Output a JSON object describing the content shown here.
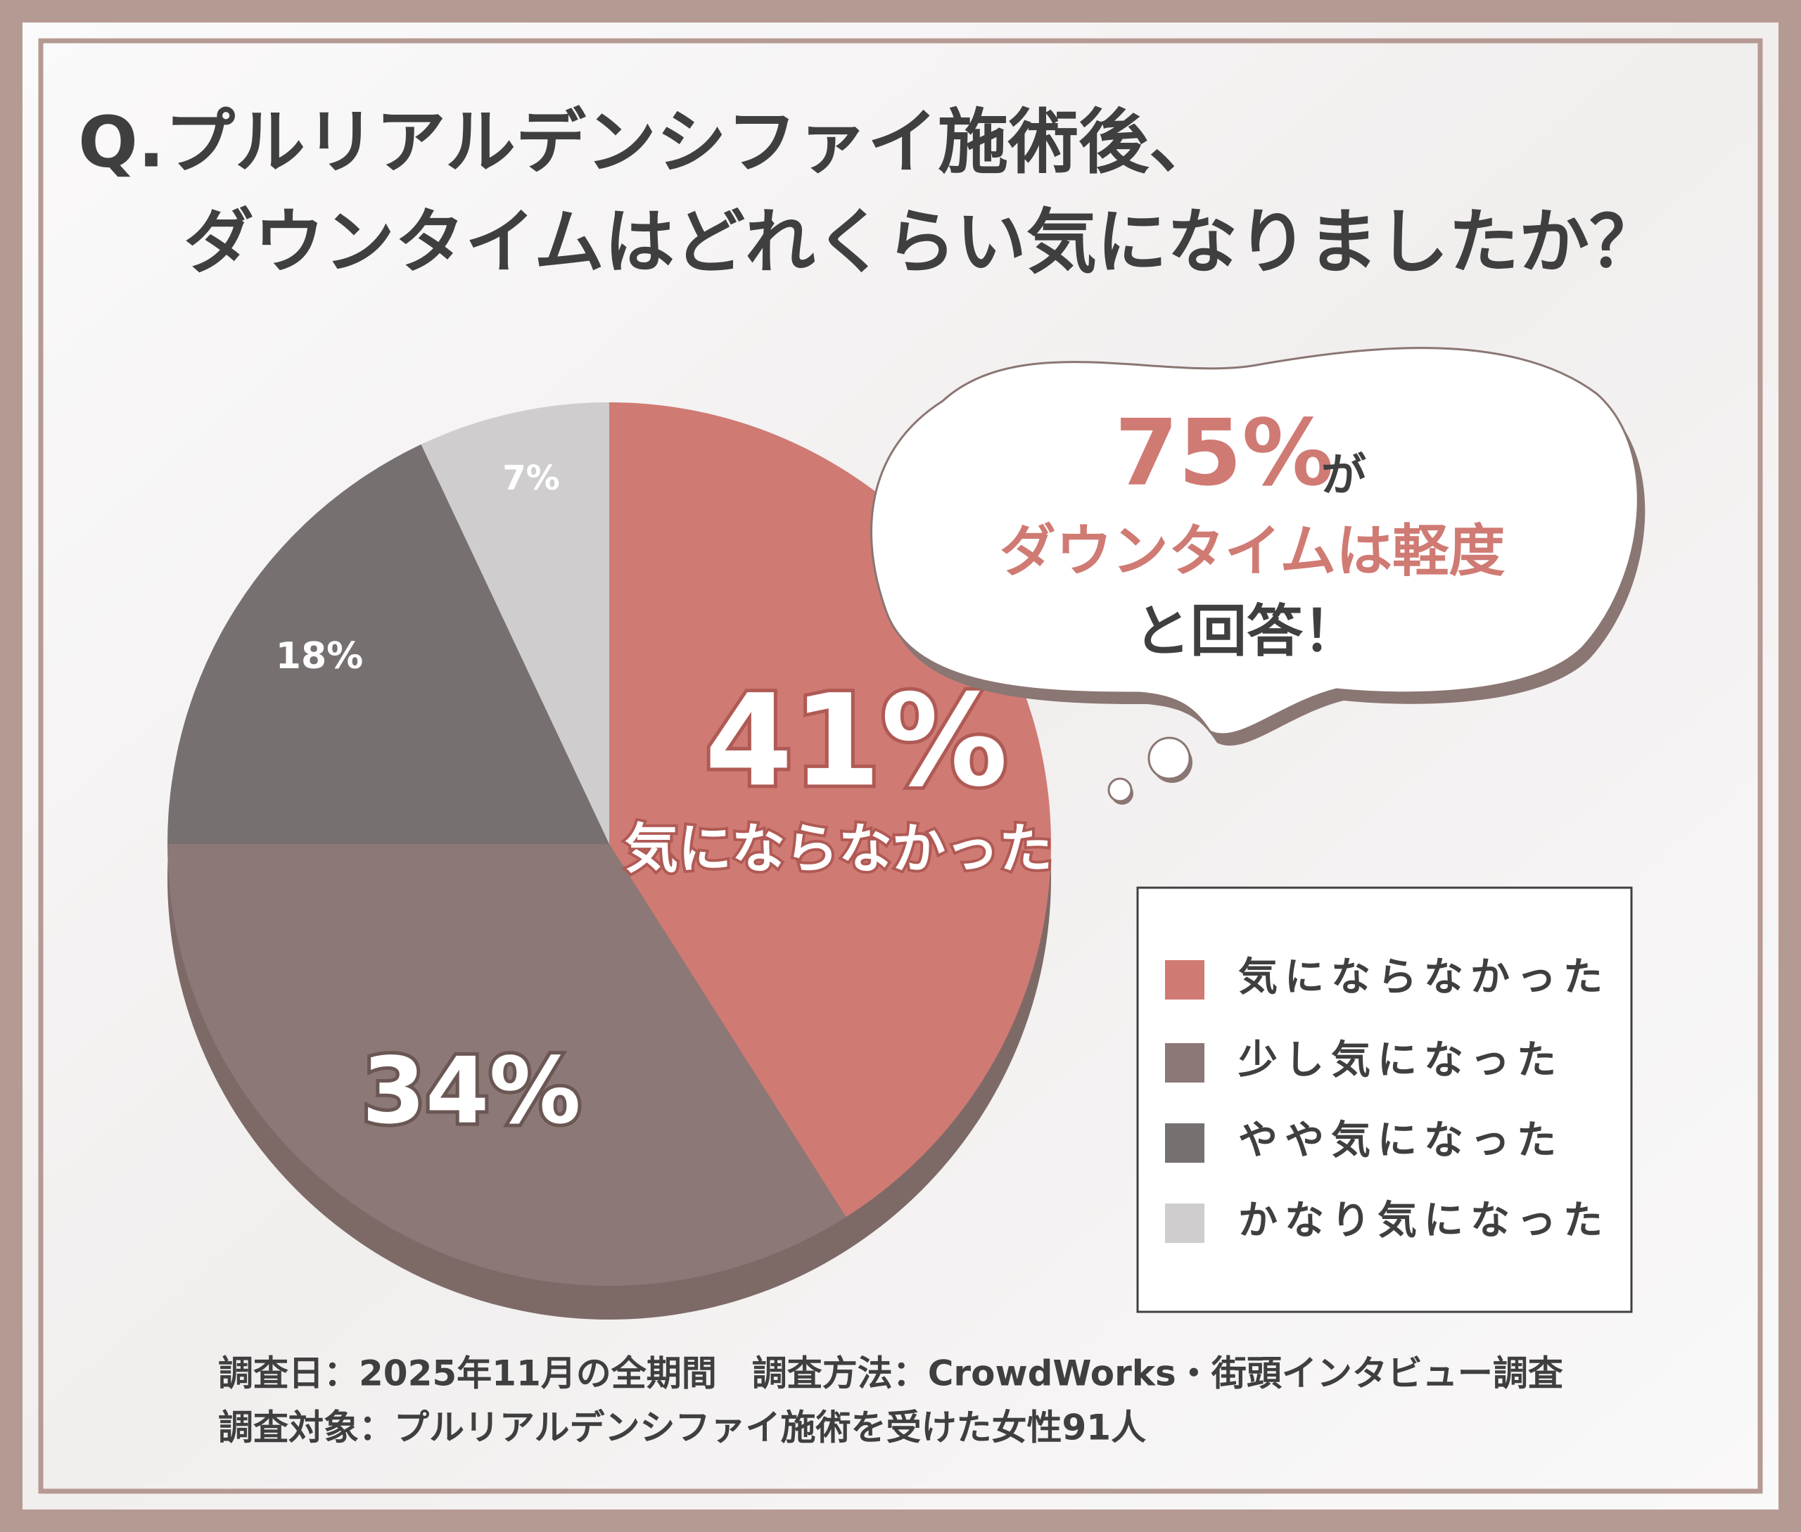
{
  "chart_data": {
    "type": "pie",
    "title": [
      "Q.プルリアルデンシファイ施術後、",
      "ダウンタイムはどれくらい気になりましたか？"
    ],
    "categories": [
      "気にならなかった",
      "少し気になった",
      "やや気になった",
      "かなり気になった"
    ],
    "values": [
      41,
      34,
      18,
      7
    ],
    "value_labels": [
      "41%",
      "34%",
      "18%",
      "7%"
    ],
    "colors": [
      "#d07a74",
      "#8c7876",
      "#767070",
      "#cfcdcd"
    ],
    "callout": {
      "highlight": "75%",
      "particle": "が",
      "line2": "ダウンタイムは軽度",
      "line3": "と回答！"
    },
    "notes": [
      "調査日：2025年11月の全期間　調査方法：CrowdWorks・街頭インタビュー調査",
      "調査対象：プルリアルデンシファイ施術を受けた女性91人"
    ]
  }
}
